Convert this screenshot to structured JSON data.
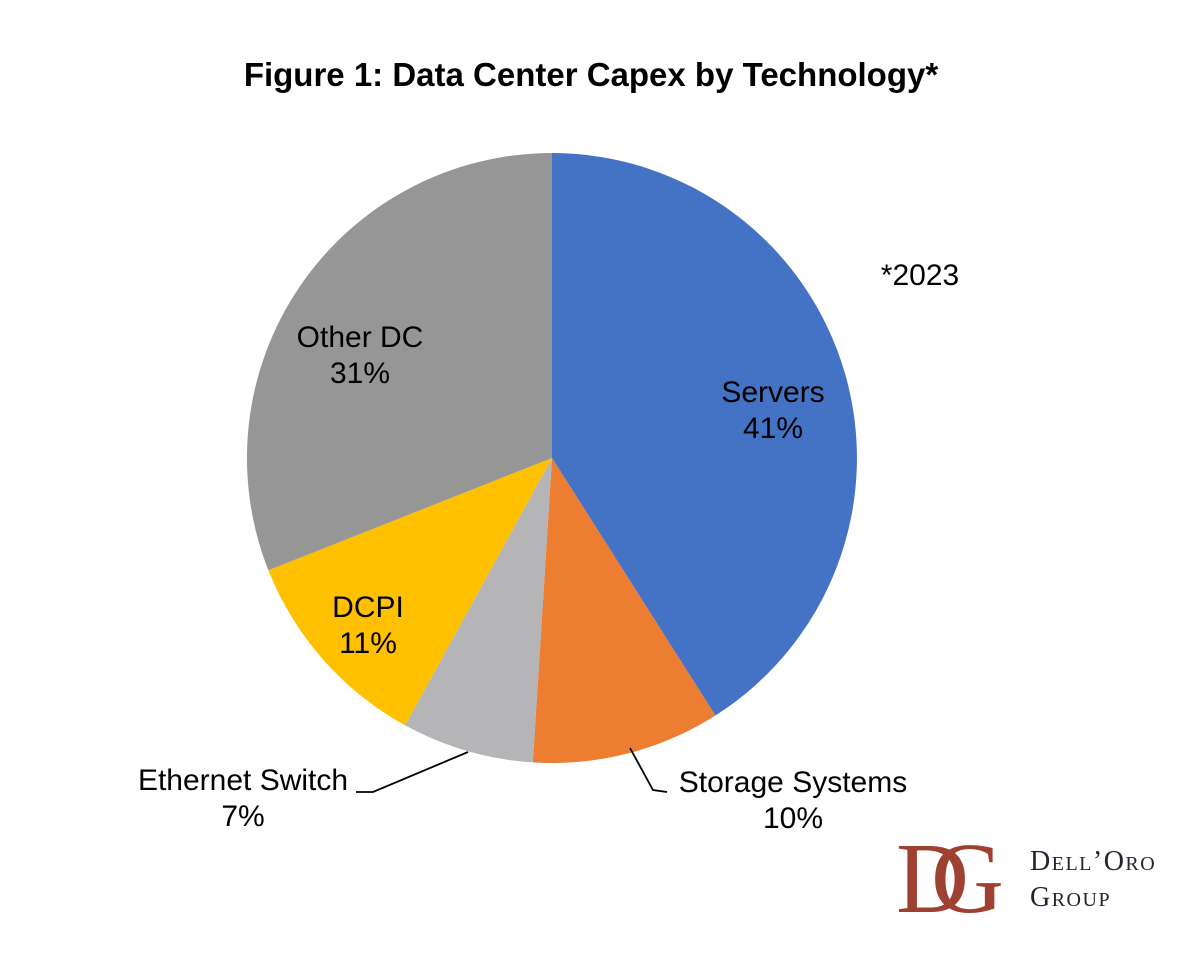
{
  "title": "Figure 1: Data Center Capex by Technology*",
  "annotation": "*2023",
  "chart_data": {
    "type": "pie",
    "title": "Figure 1: Data Center Capex by Technology*",
    "annotation": "*2023",
    "start_angle_deg": 0,
    "direction": "clockwise",
    "legend_position": "none",
    "slices": [
      {
        "id": "servers",
        "label": "Servers",
        "value": 41,
        "pct_label": "41%",
        "color": "#4472C4",
        "label_placement": "inside"
      },
      {
        "id": "storage-systems",
        "label": "Storage Systems",
        "value": 10,
        "pct_label": "10%",
        "color": "#ED7D31",
        "label_placement": "outside-leader"
      },
      {
        "id": "ethernet-switch",
        "label": "Ethernet Switch",
        "value": 7,
        "pct_label": "7%",
        "color": "#B5B5B7",
        "label_placement": "outside-leader"
      },
      {
        "id": "dcpi",
        "label": "DCPI",
        "value": 11,
        "pct_label": "11%",
        "color": "#FFC000",
        "label_placement": "inside"
      },
      {
        "id": "other-dc",
        "label": "Other DC",
        "value": 31,
        "pct_label": "31%",
        "color": "#969696",
        "label_placement": "inside"
      }
    ]
  },
  "logo": {
    "monogram_d": "D",
    "monogram_g": "G",
    "name_line1": "Dell’Oro",
    "name_line2": "Group",
    "monogram_color": "#9E4130",
    "text_color": "#23242E"
  }
}
